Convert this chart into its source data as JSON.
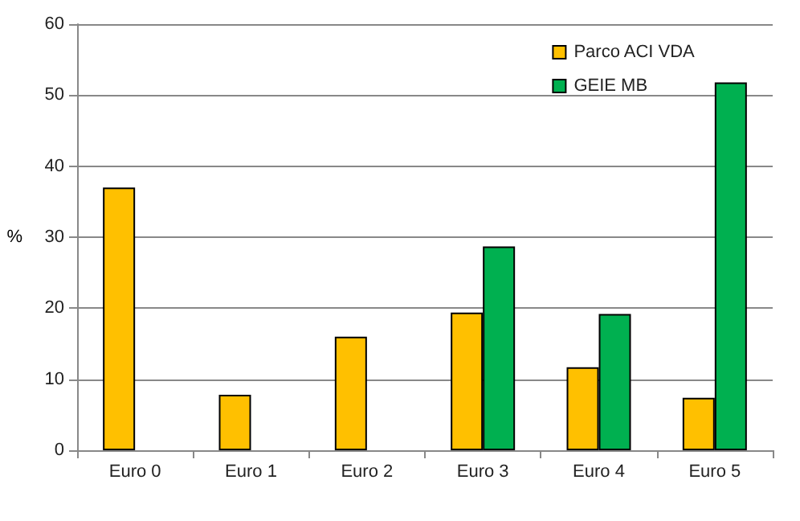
{
  "chart_data": {
    "type": "bar",
    "ylabel": "%",
    "categories": [
      "Euro 0",
      "Euro 1",
      "Euro 2",
      "Euro 3",
      "Euro 4",
      "Euro 5"
    ],
    "series": [
      {
        "name": "Parco ACI VDA",
        "color": "#ffc000",
        "values": [
          37.0,
          7.8,
          16.0,
          19.4,
          11.7,
          7.4
        ]
      },
      {
        "name": "GEIE MB",
        "color": "#00b050",
        "values": [
          null,
          null,
          null,
          28.7,
          19.2,
          51.8
        ]
      }
    ],
    "ylim": [
      0,
      60
    ],
    "yticks": [
      0,
      10,
      20,
      30,
      40,
      50,
      60
    ],
    "grid": "y",
    "legend": "top right"
  }
}
